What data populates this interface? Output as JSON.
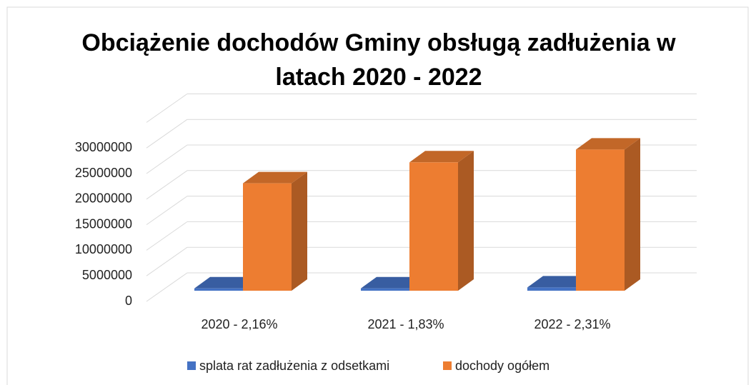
{
  "chart_data": {
    "type": "bar3d",
    "title": "Obciążenie dochodów Gminy obsługą zadłużenia w latach 2020 - 2022",
    "categories": [
      "2020 - 2,16%",
      "2021 - 1,83%",
      "2022 - 2,31%"
    ],
    "series": [
      {
        "name": "splata rat zadłużenia z odsetkami",
        "color": "#4472c4",
        "values": [
          454000,
          460000,
          638000
        ]
      },
      {
        "name": "dochody ogółem",
        "color": "#ed7d31",
        "values": [
          21000000,
          25100000,
          27600000
        ]
      }
    ],
    "ylim": [
      0,
      35000000
    ],
    "yticks": [
      0,
      5000000,
      10000000,
      15000000,
      20000000,
      25000000,
      30000000
    ],
    "grid": true,
    "legend": "bottom"
  }
}
